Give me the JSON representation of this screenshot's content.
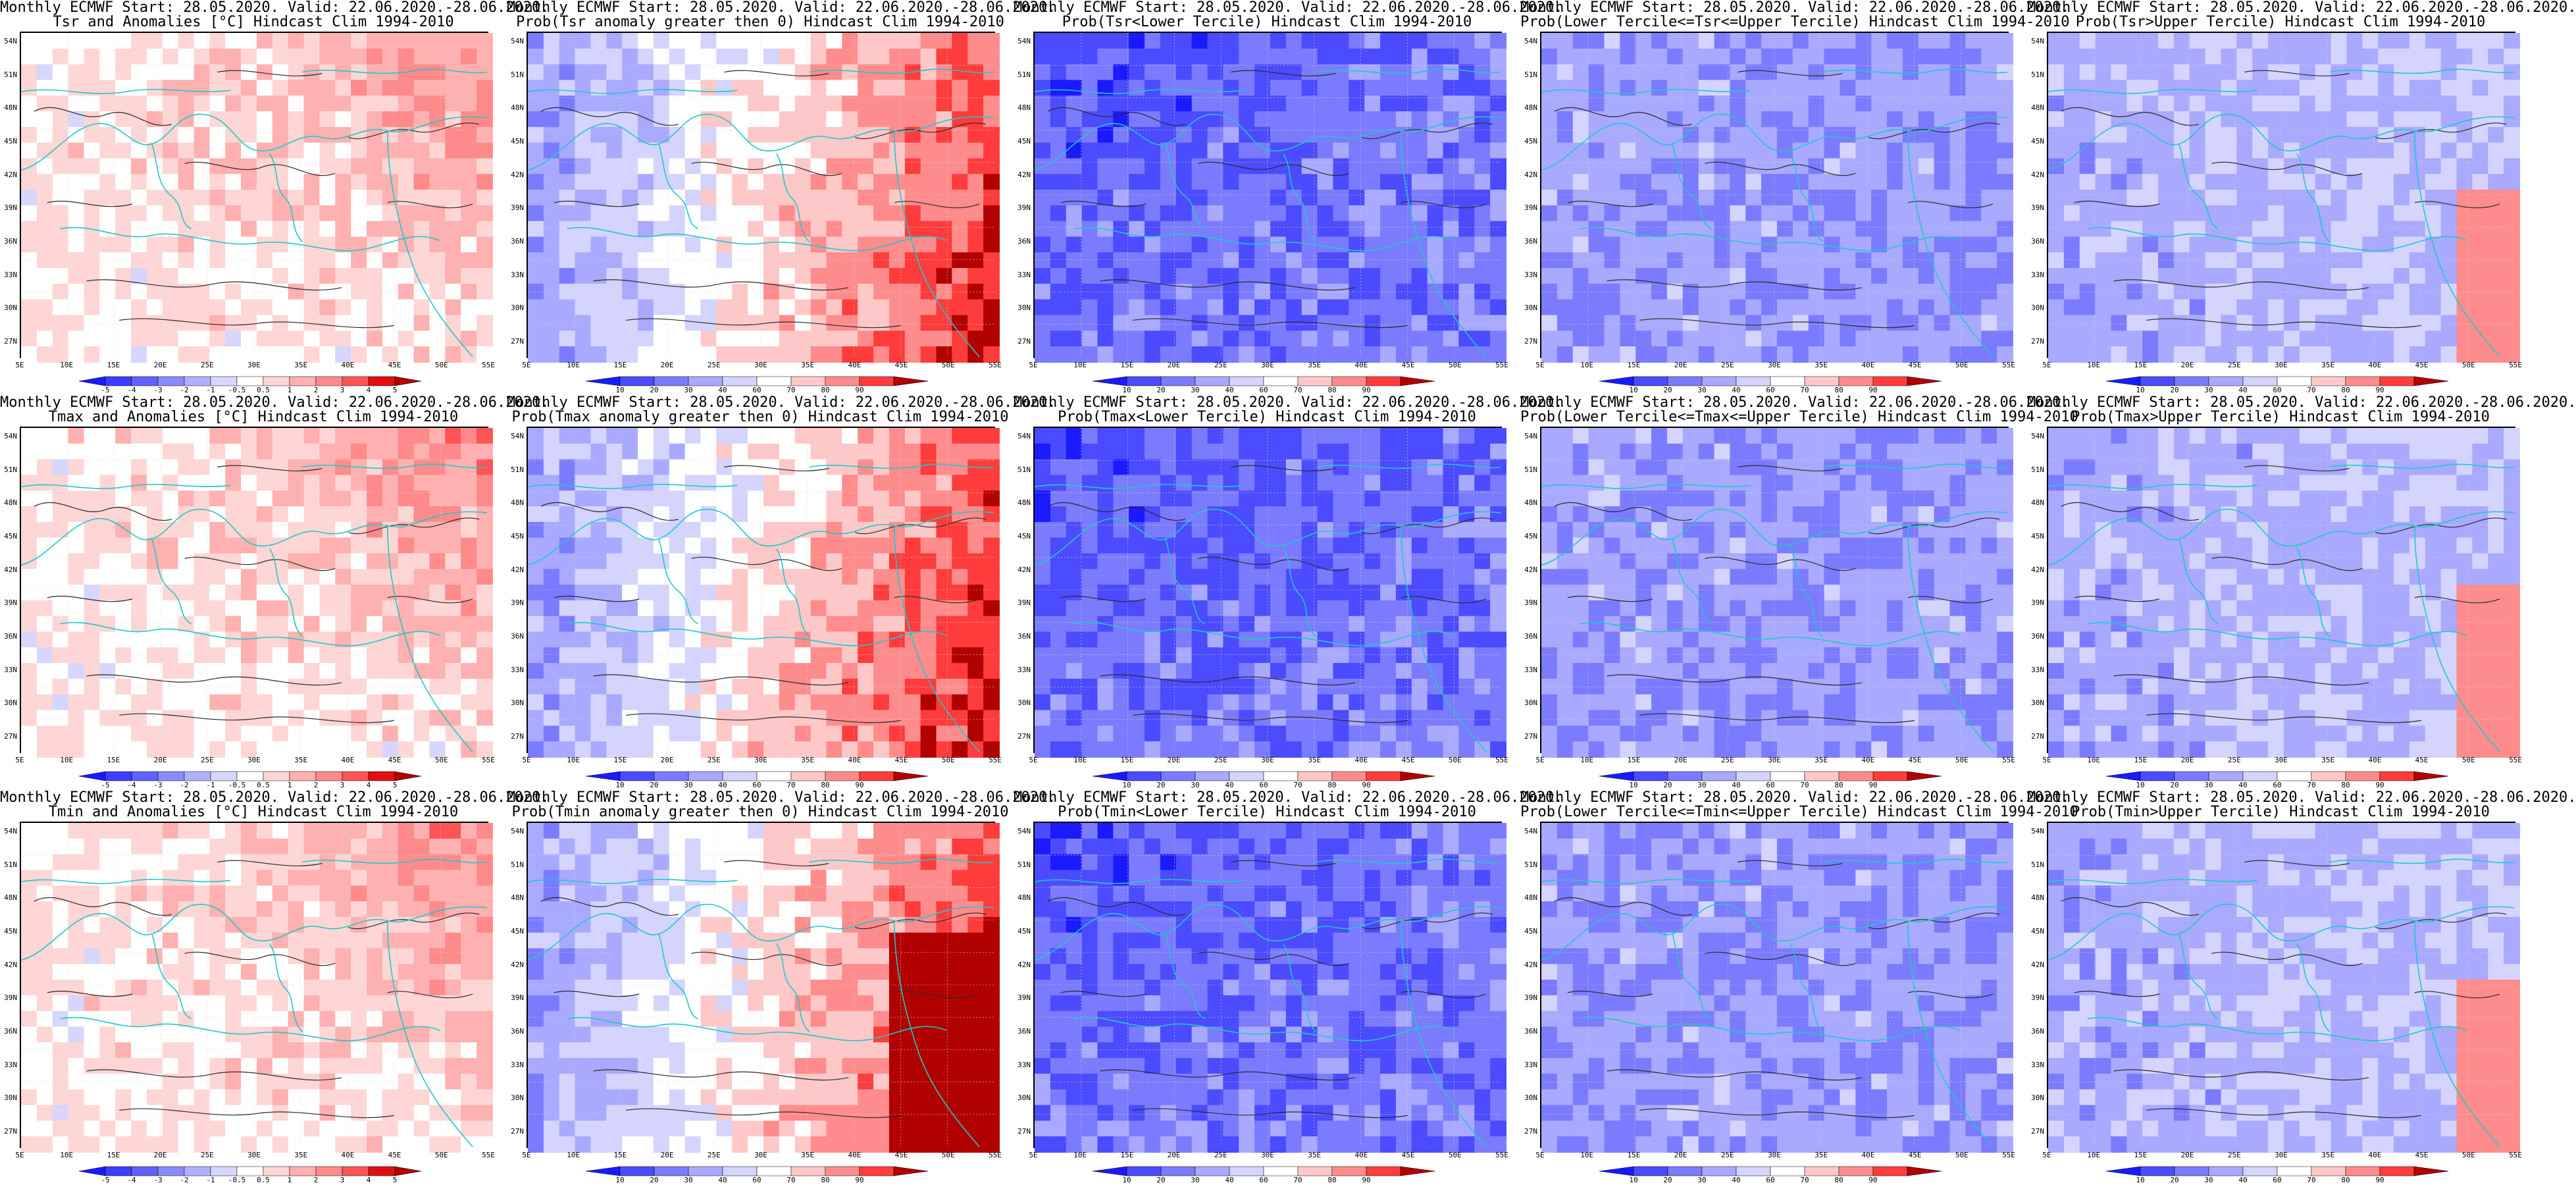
{
  "axes": {
    "lat_labels": [
      "54N",
      "51N",
      "48N",
      "45N",
      "42N",
      "39N",
      "36N",
      "33N",
      "30N",
      "27N"
    ],
    "lon_labels": [
      "5E",
      "10E",
      "15E",
      "20E",
      "25E",
      "30E",
      "35E",
      "40E",
      "45E",
      "50E",
      "55E"
    ]
  },
  "colorbars": {
    "anomaly": {
      "labels": [
        "-5",
        "-4",
        "-3",
        "-2",
        "-1",
        "-0.5",
        "0.5",
        "1",
        "2",
        "3",
        "4",
        "5"
      ],
      "colors": [
        "#1a1aff",
        "#3d3dff",
        "#6161ff",
        "#8a8aff",
        "#b0b0ff",
        "#d6d6ff",
        "#ffffff",
        "#ffd6d6",
        "#ffb0b0",
        "#ff8a8a",
        "#ff5454",
        "#e01010",
        "#b00000"
      ]
    },
    "prob": {
      "labels": [
        "10",
        "20",
        "30",
        "40",
        "60",
        "70",
        "80",
        "90"
      ],
      "colors": [
        "#1a1aff",
        "#4b4bff",
        "#7b7bff",
        "#a9a9ff",
        "#d4d4ff",
        "#ffffff",
        "#ffc8c8",
        "#ff8c8c",
        "#ff3c3c",
        "#b00000"
      ]
    }
  },
  "colors": {
    "coast": "#20c8c8",
    "contour": "#2a2a2a"
  },
  "panels": [
    {
      "title1": "Monthly ECMWF Start: 28.05.2020. Valid: 22.06.2020.-28.06.2020.",
      "title2": "Tsr and Anomalies [°C] Hindcast Clim 1994-2010",
      "kind": "anom",
      "bar": "anomaly"
    },
    {
      "title1": "Monthly ECMWF Start: 28.05.2020. Valid: 22.06.2020.-28.06.2020.",
      "title2": "Prob(Tsr anomaly greater then 0) Hindcast Clim 1994-2010",
      "kind": "probpos",
      "bar": "prob"
    },
    {
      "title1": "Monthly ECMWF Start: 28.05.2020. Valid: 22.06.2020.-28.06.2020.",
      "title2": "Prob(Tsr<Lower Tercile) Hindcast Clim 1994-2010",
      "kind": "lower",
      "bar": "prob"
    },
    {
      "title1": "Monthly ECMWF Start: 28.05.2020. Valid: 22.06.2020.-28.06.2020.",
      "title2": "Prob(Lower Tercile<=Tsr<=Upper Tercile) Hindcast Clim 1994-2010",
      "kind": "mid",
      "bar": "prob"
    },
    {
      "title1": "Monthly ECMWF Start: 28.05.2020. Valid: 22.06.2020.-28.06.2020.",
      "title2": "Prob(Tsr>Upper Tercile) Hindcast Clim 1994-2010",
      "kind": "upper",
      "bar": "prob"
    },
    {
      "title1": "Monthly ECMWF Start: 28.05.2020. Valid: 22.06.2020.-28.06.2020.",
      "title2": "Tmax and Anomalies [°C] Hindcast Clim 1994-2010",
      "kind": "anom",
      "bar": "anomaly"
    },
    {
      "title1": "Monthly ECMWF Start: 28.05.2020. Valid: 22.06.2020.-28.06.2020.",
      "title2": "Prob(Tmax anomaly greater then 0) Hindcast Clim 1994-2010",
      "kind": "probpos",
      "bar": "prob"
    },
    {
      "title1": "Monthly ECMWF Start: 28.05.2020. Valid: 22.06.2020.-28.06.2020.",
      "title2": "Prob(Tmax<Lower Tercile) Hindcast Clim 1994-2010",
      "kind": "lower",
      "bar": "prob"
    },
    {
      "title1": "Monthly ECMWF Start: 28.05.2020. Valid: 22.06.2020.-28.06.2020.",
      "title2": "Prob(Lower Tercile<=Tmax<=Upper Tercile) Hindcast Clim 1994-2010",
      "kind": "mid",
      "bar": "prob"
    },
    {
      "title1": "Monthly ECMWF Start: 28.05.2020. Valid: 22.06.2020.-28.06.2020.",
      "title2": "Prob(Tmax>Upper Tercile) Hindcast Clim 1994-2010",
      "kind": "upper",
      "bar": "prob"
    },
    {
      "title1": "Monthly ECMWF Start: 28.05.2020. Valid: 22.06.2020.-28.06.2020.",
      "title2": "Tmin and Anomalies [°C] Hindcast Clim 1994-2010",
      "kind": "anom",
      "bar": "anomaly"
    },
    {
      "title1": "Monthly ECMWF Start: 28.05.2020. Valid: 22.06.2020.-28.06.2020.",
      "title2": "Prob(Tmin anomaly greater then 0) Hindcast Clim 1994-2010",
      "kind": "probpos",
      "bar": "prob"
    },
    {
      "title1": "Monthly ECMWF Start: 28.05.2020. Valid: 22.06.2020.-28.06.2020.",
      "title2": "Prob(Tmin<Lower Tercile) Hindcast Clim 1994-2010",
      "kind": "lower",
      "bar": "prob"
    },
    {
      "title1": "Monthly ECMWF Start: 28.05.2020. Valid: 22.06.2020.-28.06.2020.",
      "title2": "Prob(Lower Tercile<=Tmin<=Upper Tercile) Hindcast Clim 1994-2010",
      "kind": "mid",
      "bar": "prob"
    },
    {
      "title1": "Monthly ECMWF Start: 28.05.2020. Valid: 22.06.2020.-28.06.2020.",
      "title2": "Prob(Tmin>Upper Tercile) Hindcast Clim 1994-2010",
      "kind": "upper",
      "bar": "prob"
    }
  ]
}
